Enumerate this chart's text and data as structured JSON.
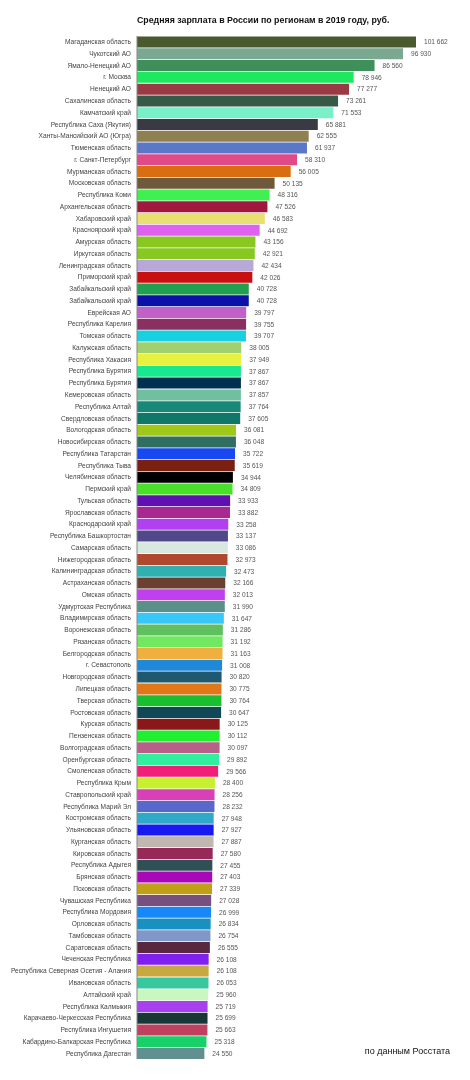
{
  "chart_data": {
    "type": "bar",
    "orientation": "horizontal",
    "title": "Средняя зарплата в России по регионам в 2019 году, руб.",
    "categories": [
      "Магаданская область",
      "Чукотский АО",
      "Ямало-Ненецкий АО",
      "г. Москва",
      "Ненецкий АО",
      "Сахалинская область",
      "Камчатский край",
      "Республика Саха (Якутия)",
      "Ханты-Мансийский АО (Югра)",
      "Тюменская область",
      "г. Санкт-Петербург",
      "Мурманская область",
      "Московская область",
      "Республика Коми",
      "Архангельская область",
      "Хабаровский край",
      "Красноярский край",
      "Амурская область",
      "Иркутская область",
      "Ленинградская область",
      "Приморский край",
      "Забайкальский край",
      "Забайкальский край",
      "Еврейская АО",
      "Республика Карелия",
      "Томская область",
      "Калужская область",
      "Республика Хакасия",
      "Республика Бурятия",
      "Республика Бурятия",
      "Кемеровская область",
      "Республика Алтай",
      "Свердловская область",
      "Вологодская область",
      "Новосибирская область",
      "Республика Татарстан",
      "Республика Тыва",
      "Челябинская область",
      "Пермский край",
      "Тульская область",
      "Ярославская область",
      "Краснодарский край",
      "Республика Башкортостан",
      "Самарская область",
      "Нижегородская область",
      "Калининградская область",
      "Астраханская область",
      "Омская область",
      "Удмуртская Республика",
      "Владимирская область",
      "Воронежская область",
      "Рязанская область",
      "Белгородская область",
      "г. Севастополь",
      "Новгородская область",
      "Липецкая область",
      "Тверская область",
      "Ростовская область",
      "Курская область",
      "Пензенская область",
      "Волгоградская область",
      "Оренбургская область",
      "Смоленская область",
      "Республика Крым",
      "Ставропольский край",
      "Республика Марий Эл",
      "Костромская область",
      "Ульяновская область",
      "Курганская область",
      "Кировская область",
      "Республика Адыгея",
      "Брянская область",
      "Псковская область",
      "Чувашская Республика",
      "Республика Мордовия",
      "Орловская область",
      "Тамбовская область",
      "Саратовская область",
      "Чеченская Республика",
      "Республика Северная Осетия - Алания",
      "Ивановская область",
      "Алтайский край",
      "Республика Калмыкия",
      "Карачаево-Черкесская Республика",
      "Республика Ингушетия",
      "Кабардино-Балкарская Республика",
      "Республика Дагестан"
    ],
    "values": [
      101662,
      96930,
      86560,
      78946,
      77277,
      73261,
      71553,
      65881,
      62555,
      61937,
      58310,
      56005,
      50135,
      48316,
      47526,
      46583,
      44692,
      43156,
      42921,
      42434,
      42026,
      40728,
      40728,
      39797,
      39755,
      39707,
      38005,
      37949,
      37867,
      37867,
      37857,
      37764,
      37605,
      36081,
      36048,
      35722,
      35619,
      34944,
      34809,
      33933,
      33882,
      33258,
      33137,
      33086,
      32973,
      32473,
      32166,
      32013,
      31990,
      31647,
      31286,
      31192,
      31163,
      31008,
      30820,
      30775,
      30764,
      30647,
      30125,
      30112,
      30097,
      29892,
      29566,
      28400,
      28256,
      28232,
      27948,
      27927,
      27887,
      27580,
      27455,
      27403,
      27339,
      27028,
      26999,
      26834,
      26754,
      26555,
      26108,
      26108,
      26053,
      25960,
      25719,
      25699,
      25663,
      25318,
      24550
    ],
    "value_labels": [
      "101 662",
      "96 930",
      "86 560",
      "78 946",
      "77 277",
      "73 261",
      "71 553",
      "65 881",
      "62 555",
      "61 937",
      "58 310",
      "56 005",
      "50 135",
      "48 316",
      "47 526",
      "46 583",
      "44 692",
      "43 156",
      "42 921",
      "42 434",
      "42 026",
      "40 728",
      "40 728",
      "39 797",
      "39 755",
      "39 707",
      "38 005",
      "37 949",
      "37 867",
      "37 867",
      "37 857",
      "37 764",
      "37 605",
      "36 081",
      "36 048",
      "35 722",
      "35 619",
      "34 944",
      "34 809",
      "33 933",
      "33 882",
      "33 258",
      "33 137",
      "33 086",
      "32 973",
      "32 473",
      "32 166",
      "32 013",
      "31 990",
      "31 647",
      "31 286",
      "31 192",
      "31 163",
      "31 008",
      "30 820",
      "30 775",
      "30 764",
      "30 647",
      "30 125",
      "30 112",
      "30 097",
      "29 892",
      "29 566",
      "28 400",
      "28 256",
      "28 232",
      "27 948",
      "27 927",
      "27 887",
      "27 580",
      "27 455",
      "27 403",
      "27 339",
      "27 028",
      "26 999",
      "26 834",
      "26 754",
      "26 555",
      "26 108",
      "26 108",
      "26 053",
      "25 960",
      "25 719",
      "25 699",
      "25 663",
      "25 318",
      "24 550"
    ],
    "colors": [
      "#4a5a2e",
      "#7aa890",
      "#3f8f5a",
      "#1ee860",
      "#9a3a44",
      "#355a48",
      "#78f0c8",
      "#3a3a45",
      "#8e8050",
      "#5a78c8",
      "#e04a88",
      "#d86e10",
      "#6e5a3a",
      "#40f050",
      "#a01840",
      "#e8e070",
      "#e060f0",
      "#88c820",
      "#88c820",
      "#b8a8d8",
      "#c81010",
      "#20a050",
      "#0a10a8",
      "#c060c8",
      "#8a3060",
      "#18d0e0",
      "#a0d070",
      "#e8f040",
      "#18e890",
      "#003050",
      "#70c0a0",
      "#188878",
      "#107868",
      "#a0c818",
      "#306e60",
      "#1848f0",
      "#7a2010",
      "#000000",
      "#48e028",
      "#6010b0",
      "#a82890",
      "#b040f0",
      "#504888",
      "#d8e8e0",
      "#b04830",
      "#30b0b0",
      "#6a4030",
      "#c040f0",
      "#5a9088",
      "#38c8f8",
      "#60c060",
      "#70e860",
      "#f0b040",
      "#2088d8",
      "#205870",
      "#e07818",
      "#18c030",
      "#104858",
      "#8a1818",
      "#20f030",
      "#b86088",
      "#30f0a0",
      "#f02078",
      "#c8f030",
      "#d840b8",
      "#5868c8",
      "#30a8c8",
      "#1818f0",
      "#c0b8b0",
      "#982858",
      "#305058",
      "#a808b8",
      "#c0a018",
      "#785080",
      "#1888f8",
      "#1890c0",
      "#8098c8",
      "#582840",
      "#8020f0",
      "#c8a840",
      "#38c8a0",
      "#c8f8c0",
      "#a840f0",
      "#183838",
      "#c04060",
      "#18d068",
      "#609090"
    ],
    "annotations": [
      "по данным Росстата"
    ]
  }
}
